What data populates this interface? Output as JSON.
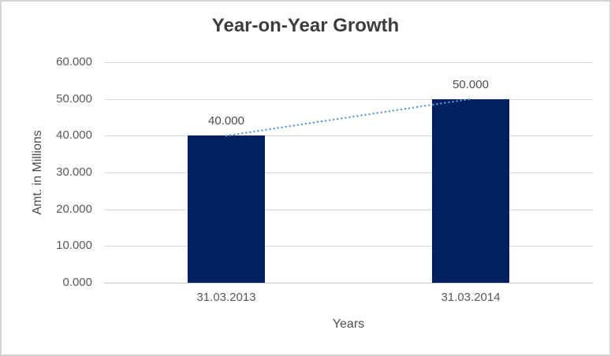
{
  "window": {
    "background": "#ffffff",
    "border_color": "#d4d4d4"
  },
  "chart_data": {
    "type": "bar",
    "title": "Year-on-Year Growth",
    "categories": [
      "31.03.2013",
      "31.03.2014"
    ],
    "values": [
      40,
      50
    ],
    "data_labels": [
      "40.000",
      "50.000"
    ],
    "xlabel": "Years",
    "ylabel": "Amt. in Millions",
    "ylim": [
      0,
      60
    ],
    "y_tick_step": 10,
    "y_ticks": [
      "0.000",
      "10.000",
      "20.000",
      "30.000",
      "40.000",
      "50.000",
      "60.000"
    ],
    "grid": true,
    "legend": "none",
    "bar_color": "#002060",
    "gridline_color": "#d9d9d9",
    "axis_line_color": "#c9c9c9",
    "text_color": "#595959",
    "title_color": "#3d3d3d",
    "trendline": {
      "type": "linear",
      "style": "dotted",
      "color": "#5b9bd5",
      "from_value": 40,
      "to_value": 50
    }
  }
}
